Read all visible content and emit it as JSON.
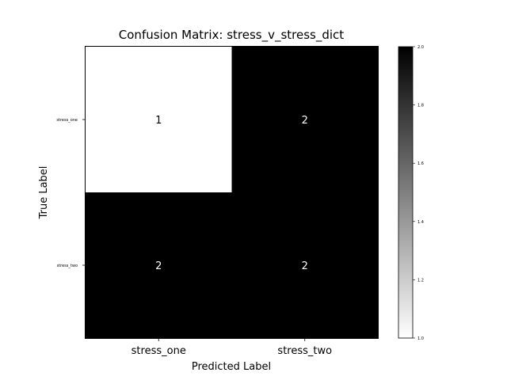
{
  "chart_data": {
    "type": "heatmap",
    "title": "Confusion Matrix: stress_v_stress_dict",
    "xlabel": "Predicted Label",
    "ylabel": "True Label",
    "x_categories": [
      "stress_one",
      "stress_two"
    ],
    "y_categories": [
      "stress_one",
      "stress_two"
    ],
    "values": [
      [
        1,
        2
      ],
      [
        2,
        2
      ]
    ],
    "cell_labels": [
      [
        "1",
        "2"
      ],
      [
        "2",
        "2"
      ]
    ],
    "colormap": "Greys",
    "color_min": "#ffffff",
    "color_max": "#000000",
    "colorbar": {
      "range": [
        1.0,
        2.0
      ],
      "ticks": [
        1.0,
        1.2,
        1.4,
        1.6,
        1.8,
        2.0
      ],
      "tick_labels": [
        "1.0",
        "1.2",
        "1.4",
        "1.6",
        "1.8",
        "2.0"
      ]
    },
    "grid": false
  }
}
